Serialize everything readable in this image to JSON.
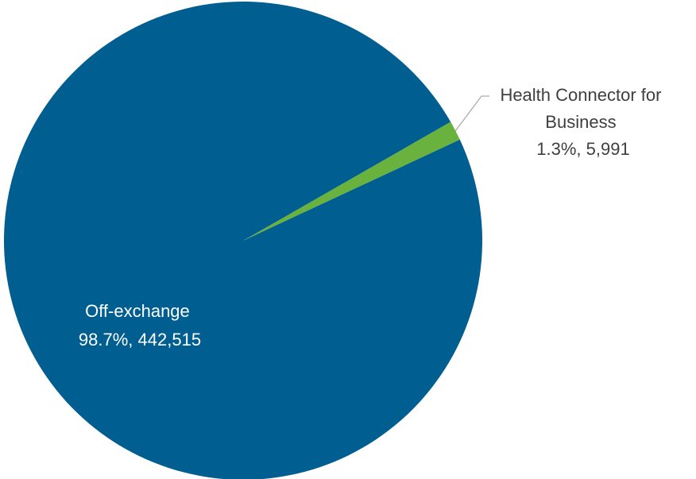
{
  "chart_data": {
    "type": "pie",
    "title": "",
    "slices": [
      {
        "name": "Health Connector for Business",
        "label_lines": [
          "Health Connector for",
          "Business",
          "1.3%, 5,991"
        ],
        "percent": 1.3,
        "value": 5991,
        "color": "#6ab23e",
        "label_color": "#3f3f3f"
      },
      {
        "name": "Off-exchange",
        "label_lines": [
          "Off-exchange",
          "98.7%, 442,515"
        ],
        "percent": 98.7,
        "value": 442515,
        "color": "#005e90",
        "label_color": "#ffffff"
      }
    ],
    "legend": "none",
    "leader_line_color": "#a6a6a6"
  }
}
